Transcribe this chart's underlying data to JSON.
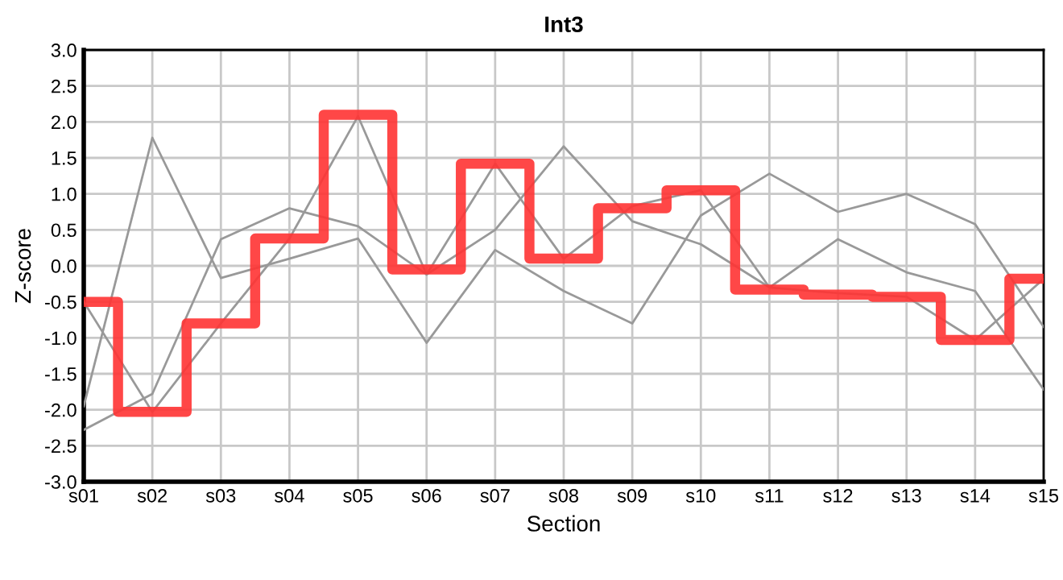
{
  "chart_data": {
    "type": "line",
    "title": "Int3",
    "xlabel": "Section",
    "ylabel": "Z-score",
    "categories": [
      "s01",
      "s02",
      "s03",
      "s04",
      "s05",
      "s06",
      "s07",
      "s08",
      "s09",
      "s10",
      "s11",
      "s12",
      "s13",
      "s14",
      "s15"
    ],
    "series": [
      {
        "color": "#999999",
        "values": [
          -1.95,
          1.78,
          -0.17,
          0.1,
          0.38,
          -1.07,
          0.22,
          -0.35,
          -0.8,
          0.7,
          1.28,
          0.75,
          1.0,
          0.58,
          -0.85
        ]
      },
      {
        "color": "#999999",
        "values": [
          -2.28,
          -1.78,
          0.37,
          0.8,
          0.55,
          -0.12,
          0.5,
          1.66,
          0.62,
          0.3,
          -0.3,
          0.37,
          -0.09,
          -0.35,
          -1.72
        ]
      },
      {
        "color": "#999999",
        "values": [
          -0.5,
          -2.03,
          -0.8,
          0.38,
          2.08,
          -0.12,
          1.42,
          0.1,
          0.83,
          1.05,
          -0.3,
          -0.38,
          -0.43,
          -1.03,
          -0.18
        ]
      },
      {
        "type": "step",
        "color": "#ff3333",
        "values": [
          -0.5,
          -2.03,
          -0.8,
          0.38,
          2.1,
          -0.05,
          1.42,
          0.1,
          0.8,
          1.05,
          -0.33,
          -0.4,
          -0.43,
          -1.03,
          -0.18
        ]
      }
    ],
    "ylim": [
      -3,
      3
    ],
    "yticks": [
      {
        "value": -3,
        "label": "-3.0"
      },
      {
        "value": -2.5,
        "label": "-2.5"
      },
      {
        "value": -2,
        "label": "-2.0"
      },
      {
        "value": -1.5,
        "label": "-1.5"
      },
      {
        "value": -1,
        "label": "-1.0"
      },
      {
        "value": -0.5,
        "label": "-0.5"
      },
      {
        "value": 0,
        "label": "0.0"
      },
      {
        "value": 0.5,
        "label": "0.5"
      },
      {
        "value": 1,
        "label": "1.0"
      },
      {
        "value": 1.5,
        "label": "1.5"
      },
      {
        "value": 2,
        "label": "2.0"
      },
      {
        "value": 2.5,
        "label": "2.5"
      },
      {
        "value": 3,
        "label": "3.0"
      }
    ],
    "grid": true,
    "legend": false,
    "marker": "none"
  }
}
